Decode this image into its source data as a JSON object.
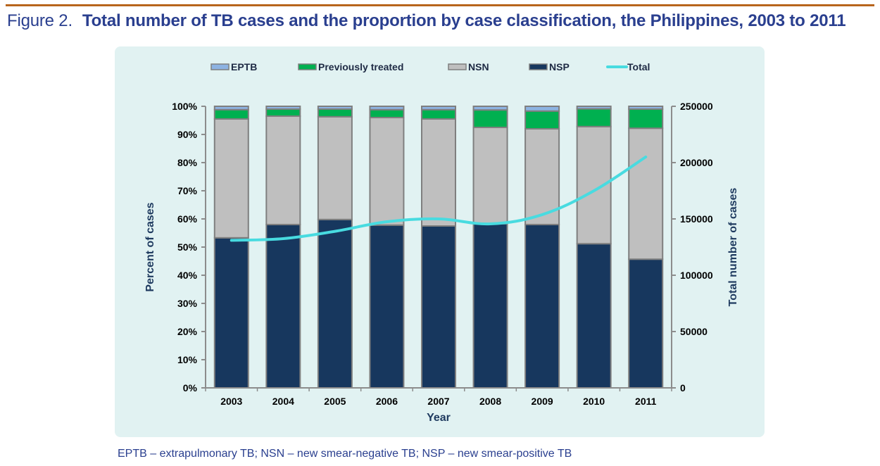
{
  "figure": {
    "label": "Figure 2.",
    "title": "Total number of TB cases and the proportion by case classification, the Philippines, 2003 to 2011",
    "footnote": "EPTB – extrapulmonary TB; NSN – new smear-negative TB; NSP – new smear-positive TB"
  },
  "colors": {
    "rule": "#b8651d",
    "title": "#2a3f8f",
    "panel": "#e1f2f2",
    "EPTB": "#8db3e2",
    "Previously treated": "#00b050",
    "NSN": "#bfbfbf",
    "NSP": "#17375e",
    "Total": "#48dbe0",
    "bar_border": "#7f7f7f"
  },
  "chart_data": {
    "type": "bar",
    "stacked": true,
    "title": "Total number of TB cases and the proportion by case classification, the Philippines, 2003 to 2011",
    "xlabel": "Year",
    "ylabel": "Percent of cases",
    "y2label": "Total number of cases",
    "categories": [
      "2003",
      "2004",
      "2005",
      "2006",
      "2007",
      "2008",
      "2009",
      "2010",
      "2011"
    ],
    "ylim": [
      0,
      100
    ],
    "y2lim": [
      0,
      250000
    ],
    "yticks": [
      "0%",
      "10%",
      "20%",
      "30%",
      "40%",
      "50%",
      "60%",
      "70%",
      "80%",
      "90%",
      "100%"
    ],
    "y2ticks": [
      "0",
      "50000",
      "100000",
      "150000",
      "200000",
      "250000"
    ],
    "legend": [
      "EPTB",
      "Previously treated",
      "NSN",
      "NSP",
      "Total"
    ],
    "legend_position": "top",
    "series": [
      {
        "name": "NSP",
        "kind": "bar",
        "axis": "left",
        "values": [
          53.3,
          58.0,
          59.8,
          57.8,
          57.5,
          58.3,
          58.0,
          51.2,
          45.7
        ]
      },
      {
        "name": "NSN",
        "kind": "bar",
        "axis": "left",
        "values": [
          42.2,
          38.5,
          36.5,
          38.2,
          38.0,
          34.2,
          34.0,
          41.6,
          46.5
        ]
      },
      {
        "name": "Previously treated",
        "kind": "bar",
        "axis": "left",
        "values": [
          3.3,
          2.5,
          2.7,
          2.8,
          3.3,
          6.2,
          6.3,
          6.3,
          6.8
        ]
      },
      {
        "name": "EPTB",
        "kind": "bar",
        "axis": "left",
        "values": [
          1.2,
          1.0,
          1.0,
          1.2,
          1.2,
          1.3,
          1.7,
          0.9,
          1.0
        ]
      },
      {
        "name": "Total",
        "kind": "line",
        "axis": "right",
        "values": [
          131000,
          132500,
          139000,
          147500,
          150000,
          145600,
          153800,
          175000,
          205000
        ]
      }
    ]
  }
}
